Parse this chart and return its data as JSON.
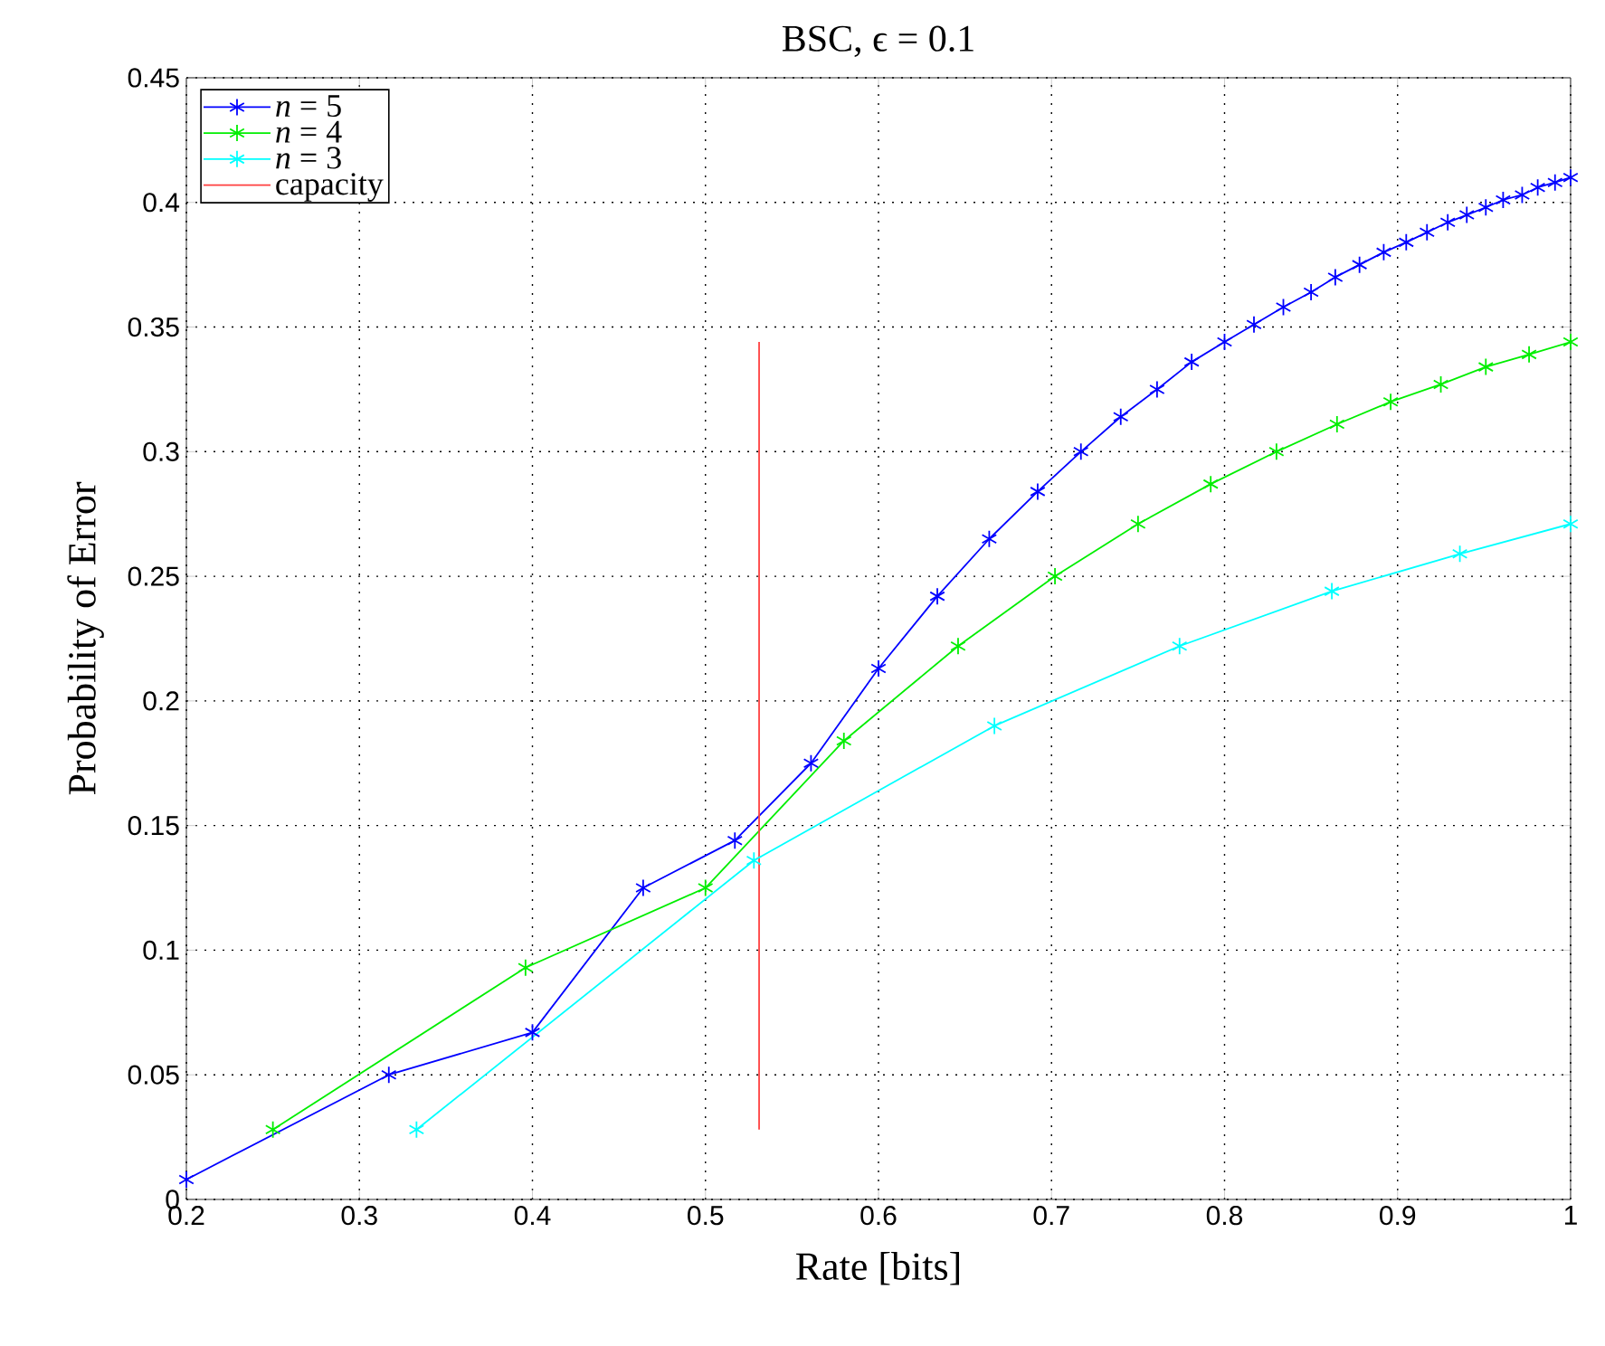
{
  "chart_data": {
    "type": "line",
    "title": "BSC, ϵ = 0.1",
    "xlabel": "Rate [bits]",
    "ylabel": "Probability of Error",
    "xlim": [
      0.2,
      1
    ],
    "xticks": [
      0.2,
      0.3,
      0.4,
      0.5,
      0.6,
      0.7,
      0.8,
      0.9,
      1
    ],
    "ylim": [
      0,
      0.45
    ],
    "yticks": [
      0,
      0.05,
      0.1,
      0.15,
      0.2,
      0.25,
      0.3,
      0.35,
      0.4,
      0.45
    ],
    "grid": true,
    "legend": "top left",
    "marker": "cross",
    "line_style": "solid",
    "series": [
      {
        "name": "*n* = 5",
        "color": "#0000ff",
        "x": [
          0.2,
          0.317,
          0.4,
          0.464,
          0.517,
          0.561,
          0.6,
          0.634,
          0.664,
          0.692,
          0.717,
          0.74,
          0.761,
          0.781,
          0.8,
          0.817,
          0.834,
          0.85,
          0.864,
          0.878,
          0.892,
          0.905,
          0.917,
          0.929,
          0.94,
          0.951,
          0.961,
          0.972,
          0.981,
          0.991,
          1.0
        ],
        "values": [
          0.008,
          0.05,
          0.067,
          0.125,
          0.144,
          0.175,
          0.213,
          0.242,
          0.265,
          0.284,
          0.3,
          0.314,
          0.325,
          0.336,
          0.344,
          0.351,
          0.358,
          0.364,
          0.37,
          0.375,
          0.38,
          0.384,
          0.388,
          0.392,
          0.395,
          0.398,
          0.401,
          0.403,
          0.406,
          0.408,
          0.41
        ]
      },
      {
        "name": "*n* = 4",
        "color": "#00ee00",
        "x": [
          0.25,
          0.396,
          0.5,
          0.58,
          0.646,
          0.702,
          0.75,
          0.792,
          0.83,
          0.865,
          0.896,
          0.925,
          0.951,
          0.976,
          1.0
        ],
        "values": [
          0.028,
          0.093,
          0.125,
          0.184,
          0.222,
          0.25,
          0.271,
          0.287,
          0.3,
          0.311,
          0.32,
          0.327,
          0.334,
          0.339,
          0.344
        ]
      },
      {
        "name": "*n* = 3",
        "color": "#00ffff",
        "x": [
          0.333,
          0.528,
          0.667,
          0.774,
          0.862,
          0.936,
          1.0
        ],
        "values": [
          0.028,
          0.136,
          0.19,
          0.222,
          0.244,
          0.259,
          0.271
        ]
      },
      {
        "name": "capacity",
        "color": "#ff4040",
        "marker": "none",
        "x": [
          0.531,
          0.531
        ],
        "values": [
          0.028,
          0.344
        ]
      }
    ]
  }
}
